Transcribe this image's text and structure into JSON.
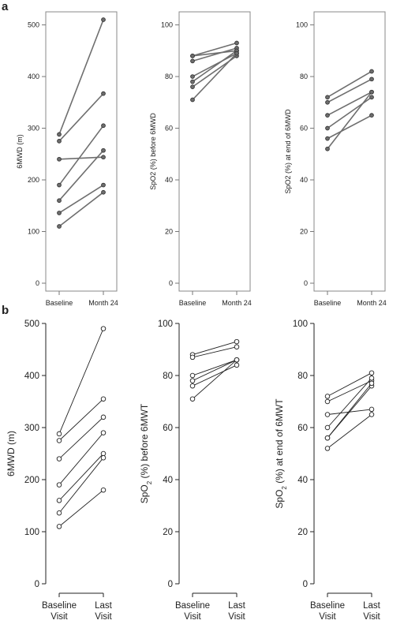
{
  "panels": [
    {
      "letter": "a"
    },
    {
      "letter": "b"
    }
  ],
  "chart_data": [
    {
      "type": "line",
      "panel": "a",
      "categories": [
        "Baseline",
        "Month 24"
      ],
      "ylabel": "6MWD (m)",
      "ylim": [
        0,
        510
      ],
      "yticks": [
        0,
        100,
        200,
        300,
        400,
        500
      ],
      "series": [
        {
          "values": [
            288,
            510
          ]
        },
        {
          "values": [
            275,
            367
          ]
        },
        {
          "values": [
            240,
            244
          ]
        },
        {
          "values": [
            190,
            305
          ]
        },
        {
          "values": [
            160,
            257
          ]
        },
        {
          "values": [
            136,
            190
          ]
        },
        {
          "values": [
            110,
            176
          ]
        }
      ]
    },
    {
      "type": "line",
      "panel": "a",
      "categories": [
        "Baseline",
        "Month 24"
      ],
      "ylabel": "SpO2 (%) before 6MWD",
      "ylim": [
        0,
        102
      ],
      "yticks": [
        0,
        20,
        40,
        60,
        80,
        100
      ],
      "series": [
        {
          "values": [
            88,
            93
          ]
        },
        {
          "values": [
            88,
            90
          ]
        },
        {
          "values": [
            86,
            91
          ]
        },
        {
          "values": [
            80,
            89
          ]
        },
        {
          "values": [
            78,
            90
          ]
        },
        {
          "values": [
            76,
            88
          ]
        },
        {
          "values": [
            71,
            89
          ]
        }
      ]
    },
    {
      "type": "line",
      "panel": "a",
      "categories": [
        "Baseline",
        "Month 24"
      ],
      "ylabel": "SpO2 (%) at end of 6MWD",
      "ylim": [
        0,
        102
      ],
      "yticks": [
        0,
        20,
        40,
        60,
        80,
        100
      ],
      "series": [
        {
          "values": [
            72,
            82
          ]
        },
        {
          "values": [
            70,
            79
          ]
        },
        {
          "values": [
            65,
            74
          ]
        },
        {
          "values": [
            60,
            72
          ]
        },
        {
          "values": [
            56,
            65
          ]
        },
        {
          "values": [
            52,
            74
          ]
        }
      ]
    },
    {
      "type": "line",
      "panel": "b",
      "categories": [
        "Baseline\nVisit",
        "Last\nVisit"
      ],
      "ylabel": "6MWD (m)",
      "ylim": [
        0,
        500
      ],
      "yticks": [
        0,
        100,
        200,
        300,
        400,
        500
      ],
      "series": [
        {
          "values": [
            288,
            490
          ]
        },
        {
          "values": [
            275,
            355
          ]
        },
        {
          "values": [
            240,
            320
          ]
        },
        {
          "values": [
            190,
            290
          ]
        },
        {
          "values": [
            160,
            250
          ]
        },
        {
          "values": [
            136,
            242
          ]
        },
        {
          "values": [
            110,
            180
          ]
        }
      ]
    },
    {
      "type": "line",
      "panel": "b",
      "categories": [
        "Baseline\nVisit",
        "Last\nVisit"
      ],
      "ylabel_parts": [
        "SpO",
        "2",
        " (%) before 6MWT"
      ],
      "ylim": [
        0,
        100
      ],
      "yticks": [
        0,
        20,
        40,
        60,
        80,
        100
      ],
      "series": [
        {
          "values": [
            88,
            93
          ]
        },
        {
          "values": [
            87,
            91
          ]
        },
        {
          "values": [
            80,
            86
          ]
        },
        {
          "values": [
            78,
            86
          ]
        },
        {
          "values": [
            76,
            84
          ]
        },
        {
          "values": [
            71,
            86
          ]
        }
      ]
    },
    {
      "type": "line",
      "panel": "b",
      "categories": [
        "Baseline\nVisit",
        "Last\nVisit"
      ],
      "ylabel_parts": [
        "SpO",
        "2",
        " (%) at end of 6MWT"
      ],
      "ylim": [
        0,
        100
      ],
      "yticks": [
        0,
        20,
        40,
        60,
        80,
        100
      ],
      "series": [
        {
          "values": [
            72,
            81
          ]
        },
        {
          "values": [
            70,
            78
          ]
        },
        {
          "values": [
            65,
            67
          ]
        },
        {
          "values": [
            60,
            79
          ]
        },
        {
          "values": [
            56,
            76
          ]
        },
        {
          "values": [
            56,
            77
          ]
        },
        {
          "values": [
            52,
            65
          ]
        }
      ]
    }
  ]
}
